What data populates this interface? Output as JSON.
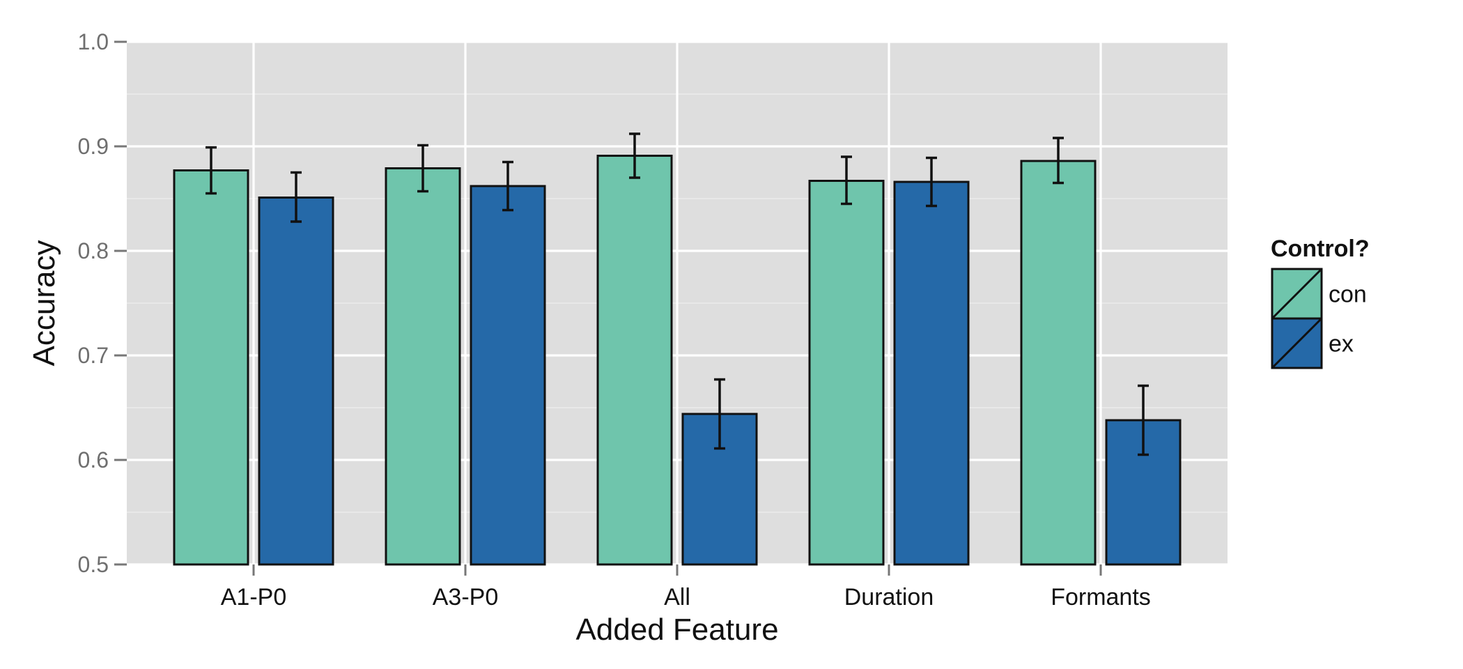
{
  "chart_data": {
    "type": "bar",
    "xlabel": "Added Feature",
    "ylabel": "Accuracy",
    "categories": [
      "A1-P0",
      "A3-P0",
      "All",
      "Duration",
      "Formants"
    ],
    "ylim": [
      0.5,
      1.0
    ],
    "yticks": [
      "0.5",
      "0.6",
      "0.7",
      "0.8",
      "0.9",
      "1.0"
    ],
    "grid": true,
    "legend": {
      "title": "Control?",
      "position": "right"
    },
    "series": [
      {
        "name": "con",
        "color": "#6fc5ac",
        "values": [
          0.877,
          0.879,
          0.891,
          0.867,
          0.886
        ],
        "error_low": [
          0.855,
          0.857,
          0.87,
          0.845,
          0.865
        ],
        "error_high": [
          0.899,
          0.901,
          0.912,
          0.89,
          0.908
        ]
      },
      {
        "name": "ex",
        "color": "#2569a8",
        "values": [
          0.851,
          0.862,
          0.644,
          0.866,
          0.638
        ],
        "error_low": [
          0.828,
          0.839,
          0.611,
          0.843,
          0.605
        ],
        "error_high": [
          0.875,
          0.885,
          0.677,
          0.889,
          0.671
        ]
      }
    ]
  }
}
